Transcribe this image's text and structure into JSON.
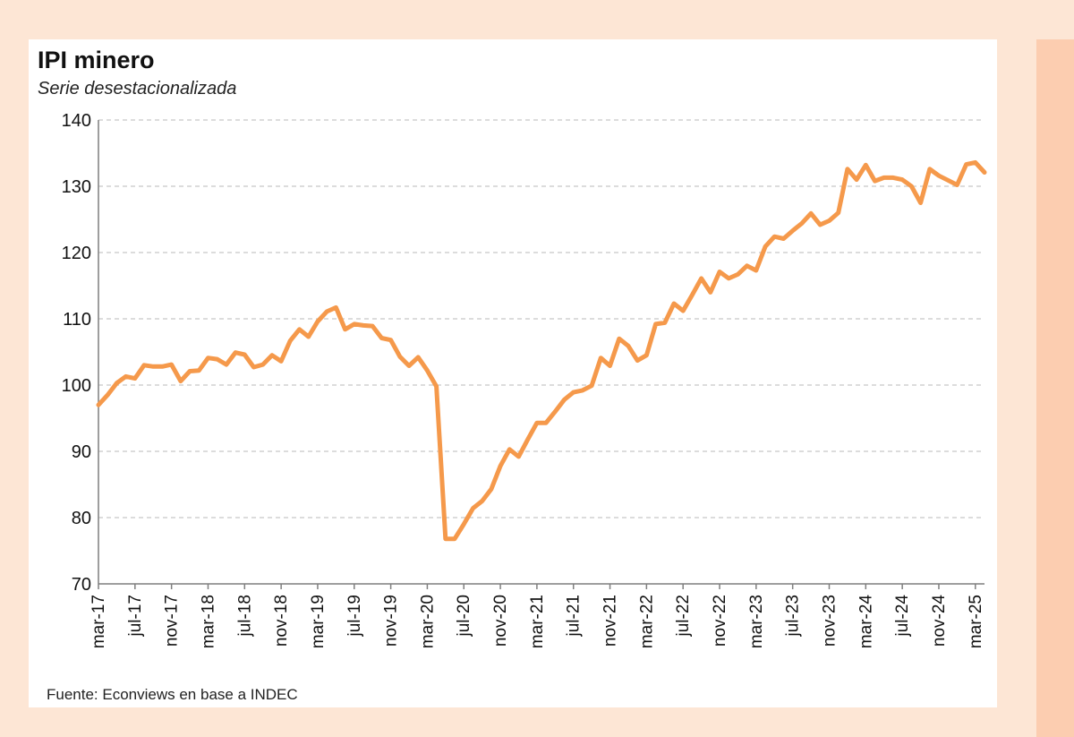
{
  "header": {
    "title": "IPI minero",
    "subtitle": "Serie desestacionalizada"
  },
  "footer": {
    "source": "Fuente: Econviews en base a INDEC"
  },
  "colors": {
    "line": "#f5994b",
    "grid": "#c8c8c8",
    "axis": "#7f7f7f"
  },
  "chart_data": {
    "type": "line",
    "title": "IPI minero",
    "subtitle": "Serie desestacionalizada",
    "xlabel": "",
    "ylabel": "",
    "ylim": [
      70,
      140
    ],
    "yticks": [
      70,
      80,
      90,
      100,
      110,
      120,
      130,
      140
    ],
    "grid": true,
    "legend": "none",
    "x_tick_labels": [
      "mar-17",
      "jul-17",
      "nov-17",
      "mar-18",
      "jul-18",
      "nov-18",
      "mar-19",
      "jul-19",
      "nov-19",
      "mar-20",
      "jul-20",
      "nov-20",
      "mar-21",
      "jul-21",
      "nov-21",
      "mar-22",
      "jul-22",
      "nov-22",
      "mar-23",
      "jul-23",
      "nov-23",
      "mar-24",
      "jul-24",
      "nov-24",
      "mar-25"
    ],
    "x_start": "mar-17",
    "x_end": "mar-25",
    "values": [
      97.0,
      98.5,
      100.3,
      101.3,
      101.0,
      103.0,
      102.8,
      102.8,
      103.1,
      100.6,
      102.1,
      102.2,
      104.1,
      103.9,
      103.1,
      104.9,
      104.6,
      102.7,
      103.1,
      104.5,
      103.6,
      106.7,
      108.4,
      107.3,
      109.6,
      111.1,
      111.7,
      108.4,
      109.2,
      109.0,
      108.9,
      107.1,
      106.8,
      104.3,
      102.9,
      104.2,
      102.2,
      99.8,
      76.8,
      76.8,
      79.0,
      81.4,
      82.5,
      84.3,
      87.8,
      90.3,
      89.2,
      91.8,
      94.3,
      94.3,
      96.0,
      97.8,
      98.9,
      99.2,
      99.9,
      104.1,
      102.9,
      107.0,
      105.9,
      103.7,
      104.5,
      109.2,
      109.4,
      112.3,
      111.2,
      113.6,
      116.1,
      114.0,
      117.1,
      116.1,
      116.7,
      118.0,
      117.3,
      120.9,
      122.4,
      122.1,
      123.3,
      124.4,
      125.9,
      124.2,
      124.8,
      126.0,
      132.6,
      131.0,
      133.2,
      130.8,
      131.3,
      131.3,
      131.0,
      130.0,
      127.5,
      132.6,
      131.6,
      130.9,
      130.2,
      133.3,
      133.6,
      132.1
    ]
  }
}
